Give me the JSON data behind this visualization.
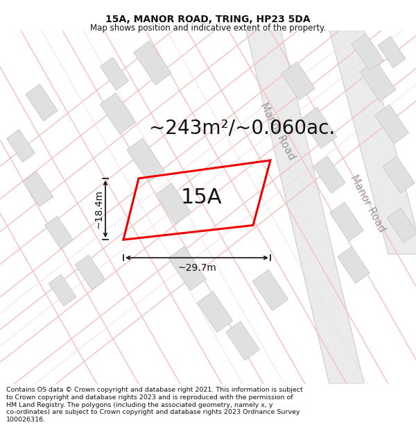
{
  "title": "15A, MANOR ROAD, TRING, HP23 5DA",
  "subtitle": "Map shows position and indicative extent of the property.",
  "area_label": "~243m²/~0.060ac.",
  "plot_label": "15A",
  "width_label": "~29.7m",
  "height_label": "~18.4m",
  "road_label": "Manor Road",
  "footer_lines": [
    "Contains OS data © Crown copyright and database right 2021. This information is subject",
    "to Crown copyright and database rights 2023 and is reproduced with the permission of",
    "HM Land Registry. The polygons (including the associated geometry, namely x, y",
    "co-ordinates) are subject to Crown copyright and database rights 2023 Ordnance Survey",
    "100026316."
  ],
  "bg_color": "#ffffff",
  "map_bg": "#ffffff",
  "road_line_color": "#f5bfbf",
  "road_band_color": "#e8e8e8",
  "building_color": "#e0e0e0",
  "building_edge": "#cccccc",
  "plot_color": "#ee0000",
  "dim_color": "#1a1a1a",
  "title_fontsize": 10,
  "subtitle_fontsize": 8.5,
  "area_fontsize": 20,
  "plot_label_fontsize": 22,
  "dim_fontsize": 10,
  "road_label_fontsize": 11,
  "footer_fontsize": 6.8
}
